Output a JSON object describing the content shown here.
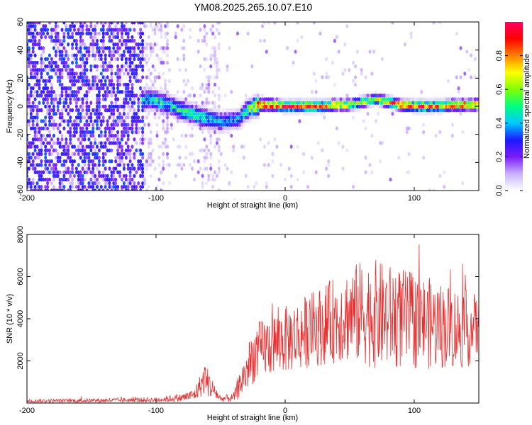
{
  "title": "YM08.2025.265.10.07.E10",
  "chart_data": [
    {
      "type": "heatmap",
      "name": "spectrogram",
      "xlabel": "Height of straight line (km)",
      "ylabel": "Frequency (Hz)",
      "xlim": [
        -200,
        150
      ],
      "ylim": [
        -60,
        60
      ],
      "xticks": [
        -200,
        -100,
        0,
        100
      ],
      "yticks": [
        -60,
        -40,
        -20,
        0,
        20,
        40,
        60
      ],
      "colorbar": {
        "label": "Normalized spectral amplitude",
        "range": [
          0.0,
          1.0
        ],
        "ticks": [
          "0.0",
          "0.2",
          "0.4",
          "0.6",
          "0.8"
        ],
        "colors": [
          "#ffffff",
          "#c8b0ff",
          "#7a1cff",
          "#1a1aff",
          "#00c8ff",
          "#00ff80",
          "#80ff00",
          "#ffff00",
          "#ff8000",
          "#ff0000",
          "#ff0060"
        ]
      },
      "signal_track": {
        "x": [
          -110,
          -100,
          -90,
          -80,
          -70,
          -60,
          -50,
          -40,
          -35,
          -30,
          -25,
          -20,
          -10,
          0,
          10,
          20,
          30,
          40,
          50,
          60,
          70,
          80,
          90,
          100,
          110,
          120,
          130,
          140,
          150
        ],
        "freq": [
          5,
          4,
          1,
          -3,
          -6,
          -9,
          -11,
          -10,
          -9,
          -3,
          -1,
          1,
          1,
          0,
          0,
          0,
          0,
          1,
          1,
          3,
          5,
          3,
          1,
          0,
          0,
          0,
          1,
          1,
          1
        ],
        "amplitude": [
          0.4,
          0.5,
          0.45,
          0.5,
          0.5,
          0.45,
          0.4,
          0.35,
          0.4,
          0.5,
          0.6,
          0.9,
          0.95,
          0.9,
          0.95,
          0.9,
          0.85,
          0.8,
          0.7,
          0.65,
          0.6,
          0.8,
          0.9,
          0.85,
          0.9,
          0.8,
          0.85,
          0.9,
          0.8
        ]
      }
    },
    {
      "type": "line",
      "name": "snr",
      "xlabel": "Height of straight line (km)",
      "ylabel": "SNR (10 * v/v)",
      "xlim": [
        -200,
        150
      ],
      "ylim": [
        0,
        8000
      ],
      "xticks": [
        -200,
        -100,
        0,
        100
      ],
      "yticks": [
        2000,
        4000,
        6000,
        8000
      ],
      "color": "#e83030",
      "envelope": {
        "x": [
          -200,
          -150,
          -100,
          -80,
          -70,
          -62,
          -58,
          -50,
          -40,
          -35,
          -30,
          -25,
          -20,
          -10,
          0,
          10,
          20,
          30,
          40,
          50,
          60,
          70,
          80,
          90,
          100,
          110,
          120,
          130,
          140,
          150
        ],
        "mean": [
          100,
          120,
          150,
          250,
          400,
          1200,
          800,
          200,
          250,
          900,
          1500,
          2200,
          2500,
          2800,
          3000,
          3200,
          3500,
          3700,
          4000,
          4200,
          4300,
          4200,
          4100,
          4000,
          3900,
          3800,
          3700,
          3600,
          3500,
          3600
        ],
        "spread": [
          80,
          100,
          120,
          200,
          300,
          800,
          600,
          150,
          200,
          700,
          1000,
          1300,
          1400,
          1500,
          1600,
          1700,
          1800,
          1900,
          2100,
          2300,
          2500,
          2600,
          2500,
          2400,
          2300,
          2200,
          2100,
          2000,
          1900,
          1500
        ]
      }
    }
  ]
}
